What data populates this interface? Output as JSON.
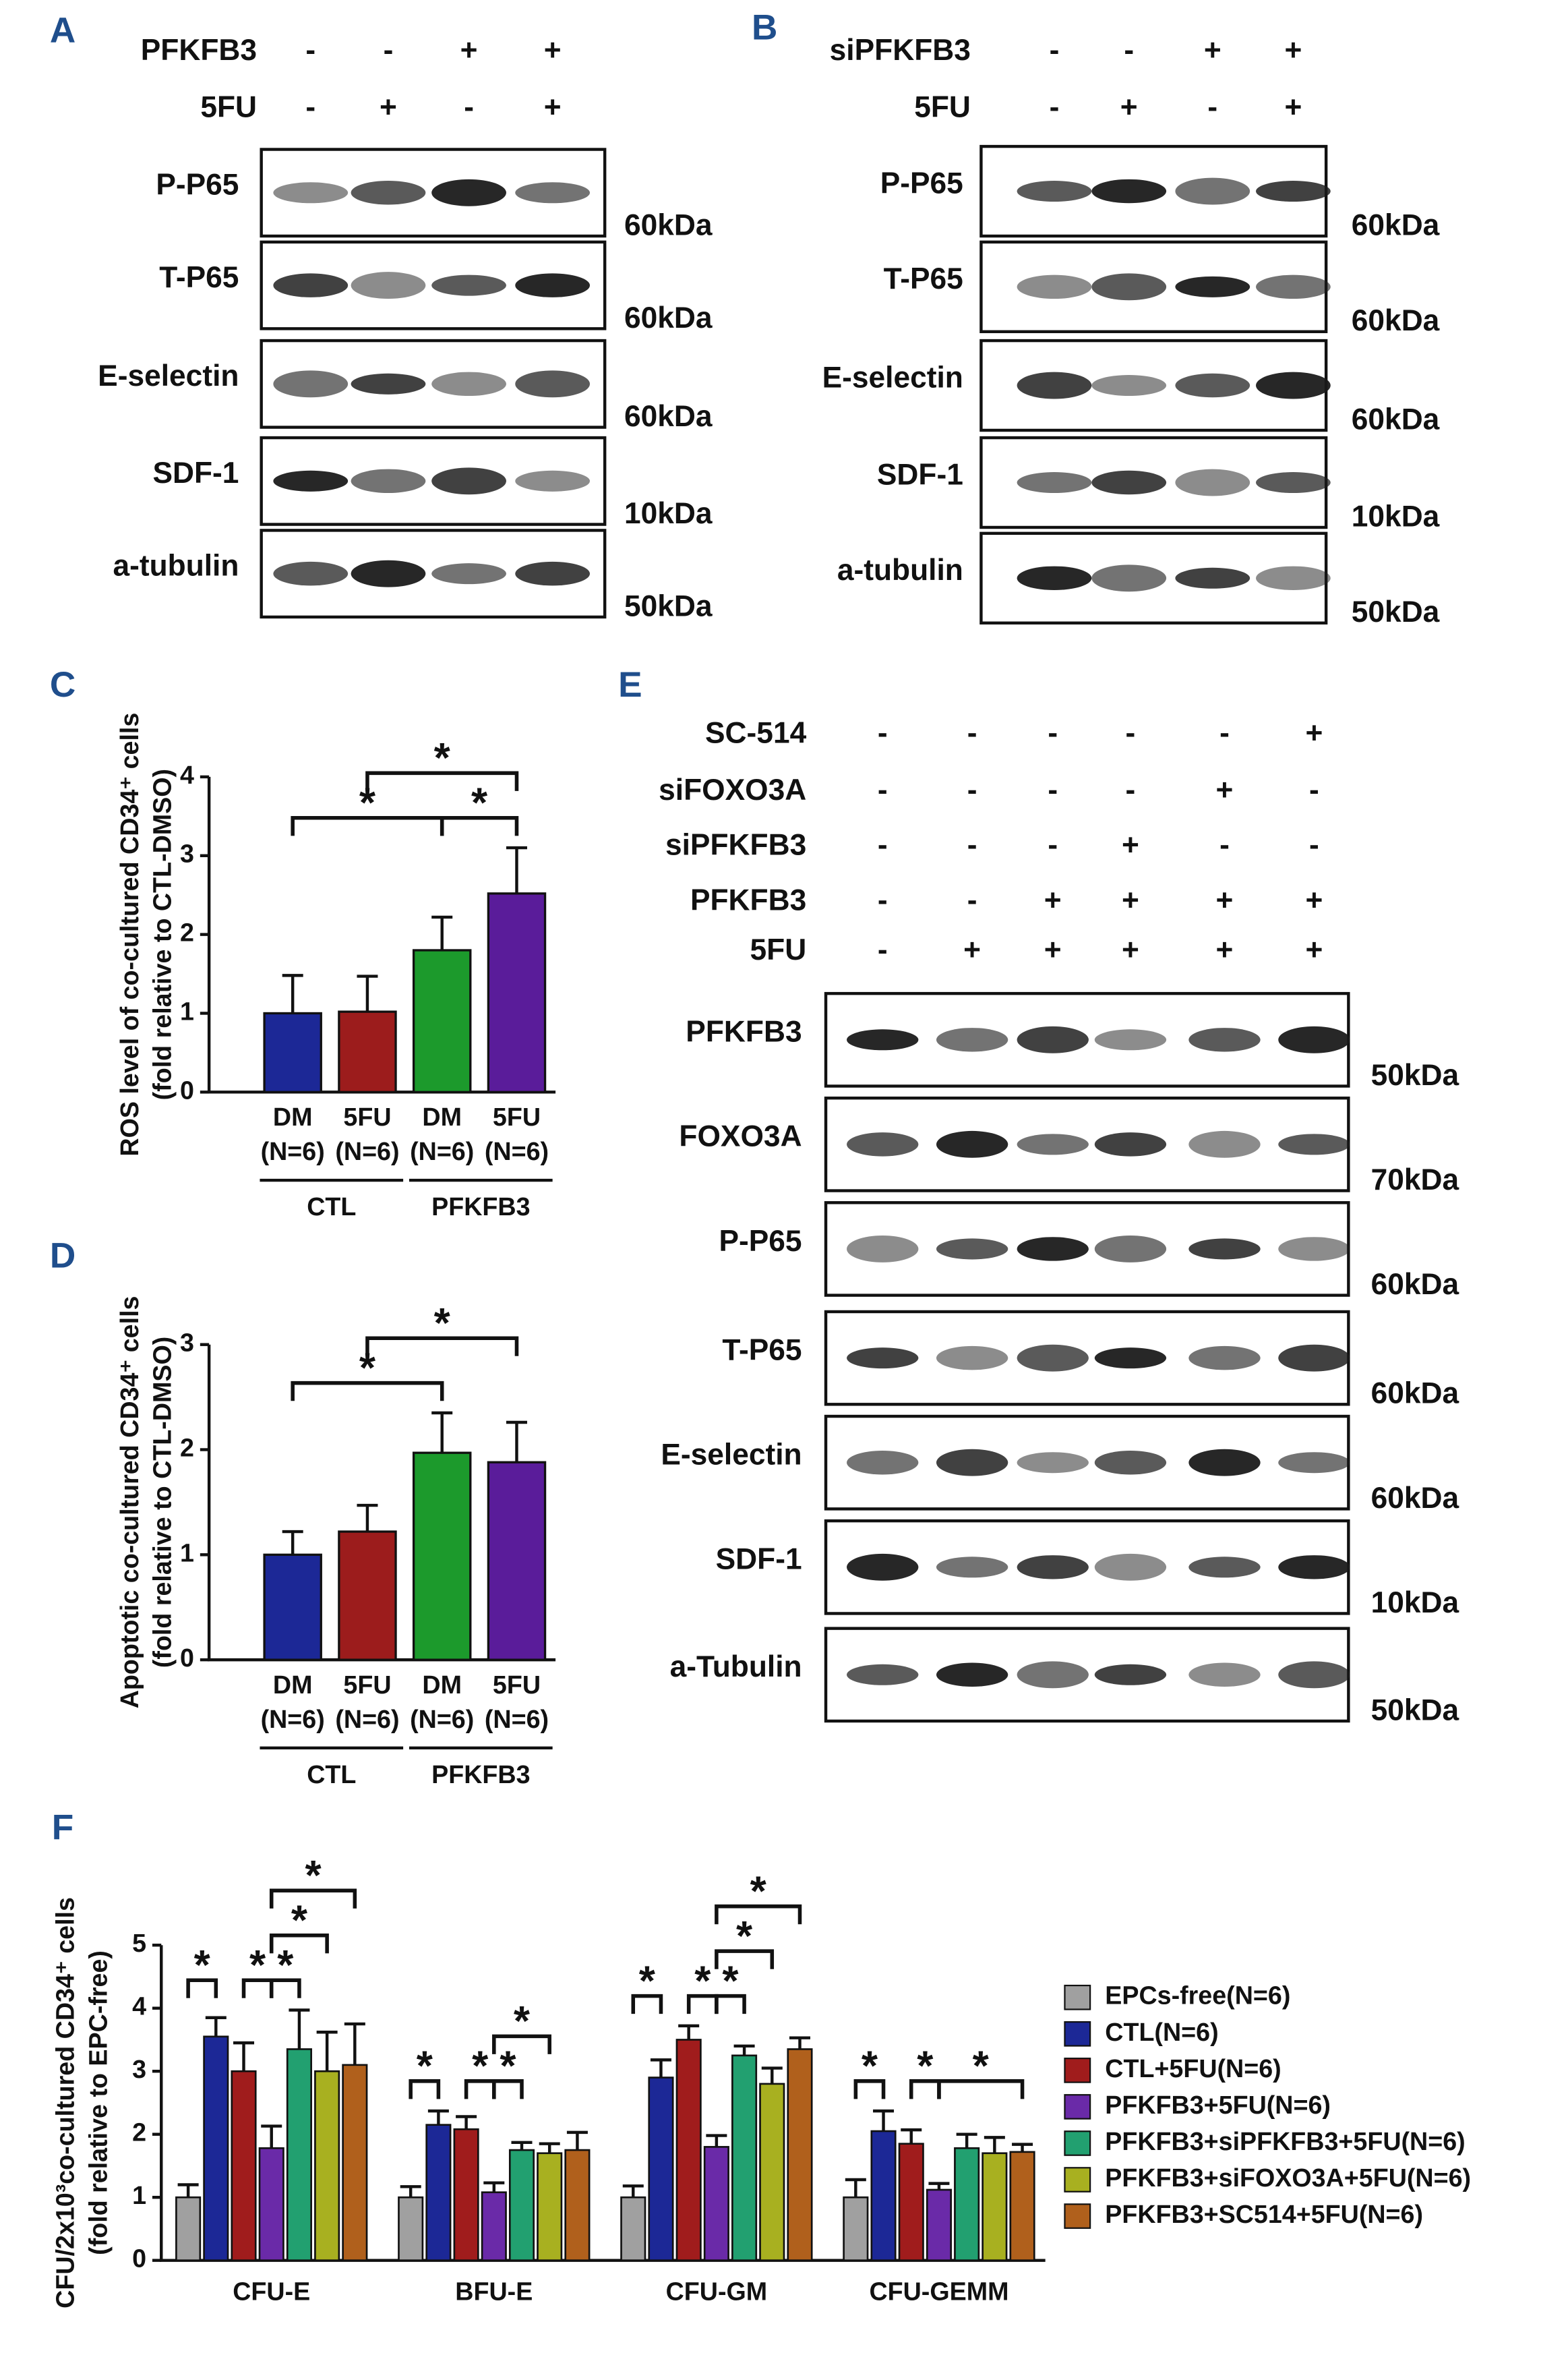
{
  "blots": [
    {
      "label": "A",
      "conditions": [
        {
          "name": "PFKFB3",
          "signs": [
            "-",
            "-",
            "+",
            "+"
          ]
        },
        {
          "name": "5FU",
          "signs": [
            "-",
            "+",
            "-",
            "+"
          ]
        }
      ],
      "bands": [
        {
          "name": "P-P65",
          "size": "60kDa"
        },
        {
          "name": "T-P65",
          "size": "60kDa"
        },
        {
          "name": "E-selectin",
          "size": "60kDa"
        },
        {
          "name": "SDF-1",
          "size": "10kDa"
        },
        {
          "name": "a-tubulin",
          "size": "50kDa"
        }
      ]
    },
    {
      "label": "B",
      "conditions": [
        {
          "name": "siPFKFB3",
          "signs": [
            "-",
            "-",
            "+",
            "+"
          ]
        },
        {
          "name": "5FU",
          "signs": [
            "-",
            "+",
            "-",
            "+"
          ]
        }
      ],
      "bands": [
        {
          "name": "P-P65",
          "size": "60kDa"
        },
        {
          "name": "T-P65",
          "size": "60kDa"
        },
        {
          "name": "E-selectin",
          "size": "60kDa"
        },
        {
          "name": "SDF-1",
          "size": "10kDa"
        },
        {
          "name": "a-tubulin",
          "size": "50kDa"
        }
      ]
    },
    {
      "label": "E",
      "conditions": [
        {
          "name": "SC-514",
          "signs": [
            "-",
            "-",
            "-",
            "-",
            "-",
            "+"
          ]
        },
        {
          "name": "siFOXO3A",
          "signs": [
            "-",
            "-",
            "-",
            "-",
            "+",
            "-"
          ]
        },
        {
          "name": "siPFKFB3",
          "signs": [
            "-",
            "-",
            "-",
            "+",
            "-",
            "-"
          ]
        },
        {
          "name": "PFKFB3",
          "signs": [
            "-",
            "-",
            "+",
            "+",
            "+",
            "+"
          ]
        },
        {
          "name": "5FU",
          "signs": [
            "-",
            "+",
            "+",
            "+",
            "+",
            "+"
          ]
        }
      ],
      "bands": [
        {
          "name": "PFKFB3",
          "size": "50kDa"
        },
        {
          "name": "FOXO3A",
          "size": "70kDa"
        },
        {
          "name": "P-P65",
          "size": "60kDa"
        },
        {
          "name": "T-P65",
          "size": "60kDa"
        },
        {
          "name": "E-selectin",
          "size": "60kDa"
        },
        {
          "name": "SDF-1",
          "size": "10kDa"
        },
        {
          "name": "a-Tubulin",
          "size": "50kDa"
        }
      ]
    }
  ],
  "chart_data": [
    {
      "label": "C",
      "type": "bar",
      "ylabel": [
        "ROS level of co-cultured CD34⁺ cells",
        "(fold relative to CTL-DMSO)"
      ],
      "categories": [
        "DM",
        "5FU",
        "DM",
        "5FU"
      ],
      "category_notes": [
        "(N=6)",
        "(N=6)",
        "(N=6)",
        "(N=6)"
      ],
      "groups": [
        "CTL",
        "PFKFB3"
      ],
      "values": [
        1.0,
        1.02,
        1.8,
        2.52
      ],
      "errors": [
        0.48,
        0.45,
        0.42,
        0.58
      ],
      "colors": [
        "#1c2896",
        "#9c1c1c",
        "#1c9a2c",
        "#5a1c9a"
      ],
      "ylim": [
        0,
        4
      ],
      "yticks": [
        0,
        1,
        2,
        3,
        4
      ],
      "significance": [
        {
          "pair": [
            0,
            2
          ],
          "label": "*"
        },
        {
          "pair": [
            2,
            3
          ],
          "label": "*"
        },
        {
          "pair": [
            1,
            3
          ],
          "label": "*"
        }
      ]
    },
    {
      "label": "D",
      "type": "bar",
      "ylabel": [
        "Apoptotic co-cultured CD34⁺ cells",
        "(fold relative to CTL-DMSO)"
      ],
      "categories": [
        "DM",
        "5FU",
        "DM",
        "5FU"
      ],
      "category_notes": [
        "(N=6)",
        "(N=6)",
        "(N=6)",
        "(N=6)"
      ],
      "groups": [
        "CTL",
        "PFKFB3"
      ],
      "values": [
        1.0,
        1.22,
        1.97,
        1.88
      ],
      "errors": [
        0.22,
        0.25,
        0.38,
        0.38
      ],
      "colors": [
        "#1c2896",
        "#9c1c1c",
        "#1c9a2c",
        "#5a1c9a"
      ],
      "ylim": [
        0,
        3
      ],
      "yticks": [
        0,
        1,
        2,
        3
      ],
      "significance": [
        {
          "pair": [
            0,
            2
          ],
          "label": "*"
        },
        {
          "pair": [
            1,
            3
          ],
          "label": "*"
        }
      ]
    },
    {
      "label": "F",
      "type": "grouped_bar",
      "ylabel": [
        "CFU/2x10³co-cultured CD34⁺ cells",
        "(fold relative to EPC-free)"
      ],
      "categories": [
        "CFU-E",
        "BFU-E",
        "CFU-GM",
        "CFU-GEMM"
      ],
      "series": [
        {
          "name": "EPCs-free(N=6)",
          "color": "#a0a0a0",
          "values": [
            1.0,
            1.0,
            1.0,
            1.0
          ],
          "errors": [
            0.2,
            0.17,
            0.18,
            0.28
          ]
        },
        {
          "name": "CTL(N=6)",
          "color": "#1c2896",
          "values": [
            3.55,
            2.15,
            2.9,
            2.05
          ],
          "errors": [
            0.3,
            0.22,
            0.28,
            0.32
          ]
        },
        {
          "name": "CTL+5FU(N=6)",
          "color": "#a01c1c",
          "values": [
            3.0,
            2.08,
            3.5,
            1.85
          ],
          "errors": [
            0.45,
            0.2,
            0.22,
            0.22
          ]
        },
        {
          "name": "PFKFB3+5FU(N=6)",
          "color": "#6a2aa8",
          "values": [
            1.78,
            1.08,
            1.8,
            1.12
          ],
          "errors": [
            0.35,
            0.15,
            0.18,
            0.1
          ]
        },
        {
          "name": "PFKFB3+siPFKFB3+5FU(N=6)",
          "color": "#22a070",
          "values": [
            3.35,
            1.75,
            3.25,
            1.78
          ],
          "errors": [
            0.62,
            0.12,
            0.15,
            0.22
          ]
        },
        {
          "name": "PFKFB3+siFOXO3A+5FU(N=6)",
          "color": "#a8b020",
          "values": [
            3.0,
            1.7,
            2.8,
            1.7
          ],
          "errors": [
            0.62,
            0.15,
            0.25,
            0.25
          ]
        },
        {
          "name": "PFKFB3+SC514+5FU(N=6)",
          "color": "#b0601c",
          "values": [
            3.1,
            1.75,
            3.35,
            1.72
          ],
          "errors": [
            0.65,
            0.28,
            0.18,
            0.12
          ]
        }
      ],
      "ylim": [
        0,
        5
      ],
      "yticks": [
        0,
        1,
        2,
        3,
        4,
        5
      ],
      "legend": "right",
      "significance": [
        [
          {
            "pair": [
              0,
              1
            ],
            "label": "*"
          },
          {
            "pair": [
              2,
              3
            ],
            "label": "*"
          },
          {
            "pair": [
              3,
              4
            ],
            "label": "*"
          },
          {
            "pair": [
              3,
              5
            ],
            "label": "*"
          },
          {
            "pair": [
              3,
              6
            ],
            "label": "*"
          }
        ],
        [
          {
            "pair": [
              0,
              1
            ],
            "label": "*"
          },
          {
            "pair": [
              2,
              3
            ],
            "label": "*"
          },
          {
            "pair": [
              3,
              4
            ],
            "label": "*"
          },
          {
            "pair": [
              3,
              5
            ],
            "label": "*"
          }
        ],
        [
          {
            "pair": [
              0,
              1
            ],
            "label": "*"
          },
          {
            "pair": [
              2,
              3
            ],
            "label": "*"
          },
          {
            "pair": [
              3,
              4
            ],
            "label": "*"
          },
          {
            "pair": [
              3,
              5
            ],
            "label": "*"
          },
          {
            "pair": [
              3,
              6
            ],
            "label": "*"
          }
        ],
        [
          {
            "pair": [
              0,
              1
            ],
            "label": "*"
          },
          {
            "pair": [
              2,
              3
            ],
            "label": "*"
          },
          {
            "pair": [
              3,
              6
            ],
            "label": "*"
          }
        ]
      ]
    }
  ]
}
